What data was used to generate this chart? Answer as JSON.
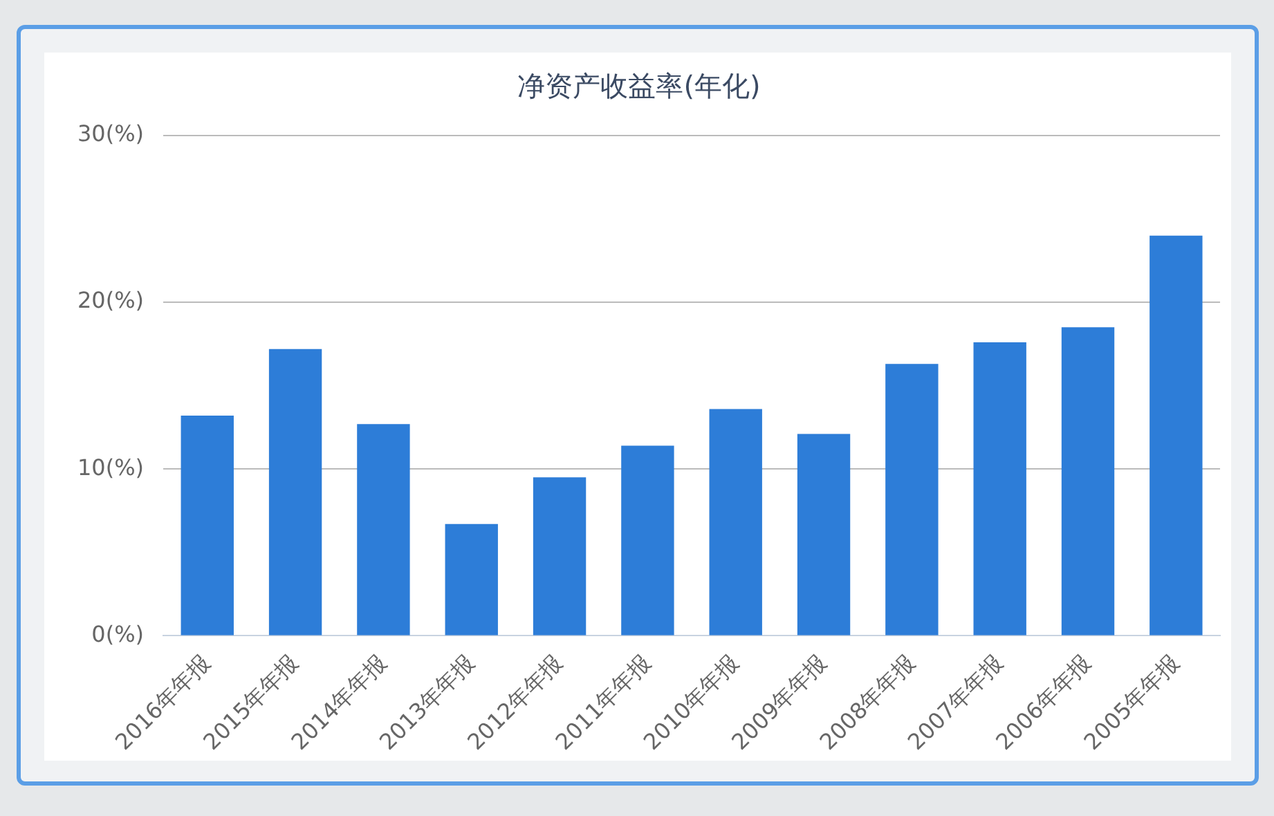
{
  "chart_data": {
    "type": "bar",
    "title": "净资产收益率(年化)",
    "categories": [
      "2016年年报",
      "2015年年报",
      "2014年年报",
      "2013年年报",
      "2012年年报",
      "2011年年报",
      "2010年年报",
      "2009年年报",
      "2008年年报",
      "2007年年报",
      "2006年年报",
      "2005年年报"
    ],
    "values": [
      13.2,
      17.2,
      12.7,
      6.7,
      9.5,
      11.4,
      13.6,
      12.1,
      16.3,
      17.6,
      18.5,
      24.0
    ],
    "color": "#2d7dd8",
    "ylim": [
      0,
      30
    ],
    "yticks": [
      {
        "value": 0,
        "label": "0(%)"
      },
      {
        "value": 10,
        "label": "10(%)"
      },
      {
        "value": 20,
        "label": "20(%)"
      },
      {
        "value": 30,
        "label": "30(%)"
      }
    ],
    "grid": "y",
    "legend": false
  }
}
